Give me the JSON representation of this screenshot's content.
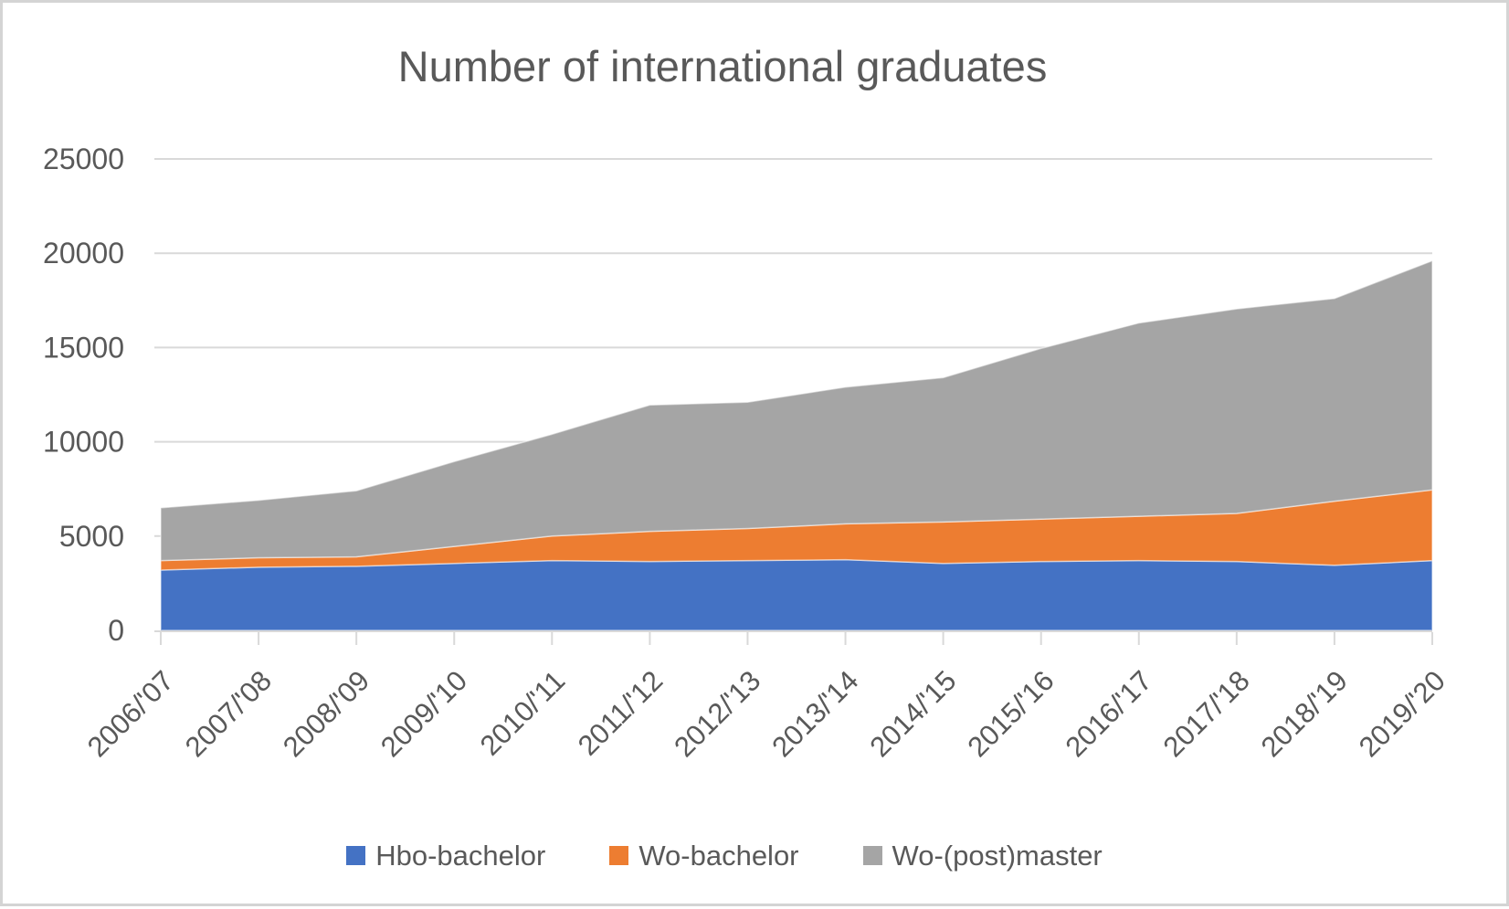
{
  "chart_data": {
    "type": "area",
    "stacked": true,
    "title": "Number of international graduates",
    "categories": [
      "2006/'07",
      "2007/'08",
      "2008/'09",
      "2009/'10",
      "2010/'11",
      "2011/'12",
      "2012/'13",
      "2013/'14",
      "2014/'15",
      "2015/'16",
      "2016/'17",
      "2017/'18",
      "2018/'19",
      "2019/'20"
    ],
    "series": [
      {
        "name": "Hbo-bachelor",
        "color": "#4472C4",
        "values": [
          3200,
          3350,
          3400,
          3550,
          3700,
          3650,
          3700,
          3750,
          3550,
          3650,
          3700,
          3650,
          3450,
          3700
        ]
      },
      {
        "name": "Wo-bachelor",
        "color": "#ED7D31",
        "values": [
          500,
          500,
          500,
          900,
          1300,
          1600,
          1700,
          1900,
          2200,
          2250,
          2350,
          2550,
          3400,
          3750
        ]
      },
      {
        "name": "Wo-(post)master",
        "color": "#A5A5A5",
        "values": [
          2800,
          3050,
          3500,
          4500,
          5400,
          6700,
          6700,
          7250,
          7650,
          9050,
          10250,
          10850,
          10750,
          12150
        ]
      }
    ],
    "stack_totals": [
      6500,
      6900,
      7400,
      8950,
      10400,
      11950,
      12100,
      12900,
      13400,
      14950,
      16300,
      17050,
      17600,
      19600
    ],
    "ylim": [
      0,
      25000
    ],
    "y_ticks": [
      0,
      5000,
      10000,
      15000,
      20000,
      25000
    ],
    "grid": true,
    "legend_position": "bottom",
    "colors": {
      "gridline": "#D9D9D9",
      "axis_line": "#D9D9D9",
      "tick_label": "#595959",
      "title": "#595959",
      "frame_border": "#d4d4d4",
      "background": "#ffffff"
    }
  }
}
